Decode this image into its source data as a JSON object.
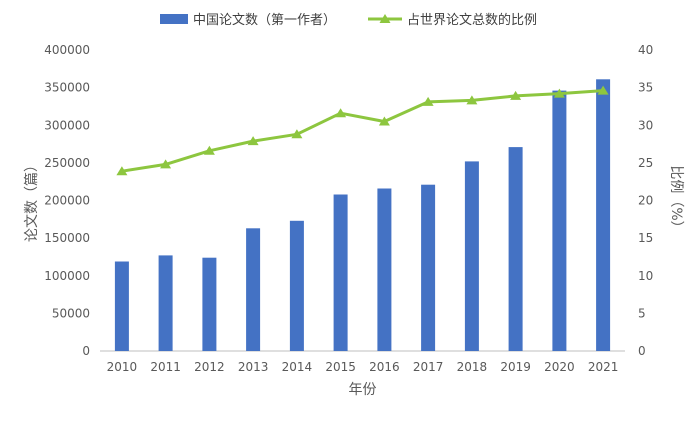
{
  "chart_data": {
    "type": "bar",
    "categories": [
      "2010",
      "2011",
      "2012",
      "2013",
      "2014",
      "2015",
      "2016",
      "2017",
      "2018",
      "2019",
      "2020",
      "2021"
    ],
    "series": [
      {
        "name": "中国论文数（第一作者）",
        "type": "bar",
        "axis": "left",
        "color": "#4472C4",
        "values": [
          119000,
          127000,
          124000,
          163000,
          173000,
          208000,
          216000,
          221000,
          252000,
          271000,
          346000,
          361000
        ]
      },
      {
        "name": "占世界论文总数的比例",
        "type": "line",
        "axis": "right",
        "color": "#8DC63F",
        "marker": "triangle",
        "values": [
          23.9,
          24.8,
          26.6,
          27.9,
          28.8,
          31.6,
          30.5,
          33.1,
          33.3,
          33.9,
          34.2,
          34.6
        ]
      }
    ],
    "xlabel": "年份",
    "ylabel": "论文数（篇）",
    "y2label": "比例（%）",
    "ylim": [
      0,
      400000
    ],
    "yticks": [
      "0",
      "50000",
      "100000",
      "150000",
      "200000",
      "250000",
      "300000",
      "350000",
      "400000"
    ],
    "y2lim": [
      0,
      40
    ],
    "y2ticks": [
      "0",
      "5",
      "10",
      "15",
      "20",
      "25",
      "30",
      "35",
      "40"
    ],
    "grid": false,
    "legend": "top-center"
  }
}
